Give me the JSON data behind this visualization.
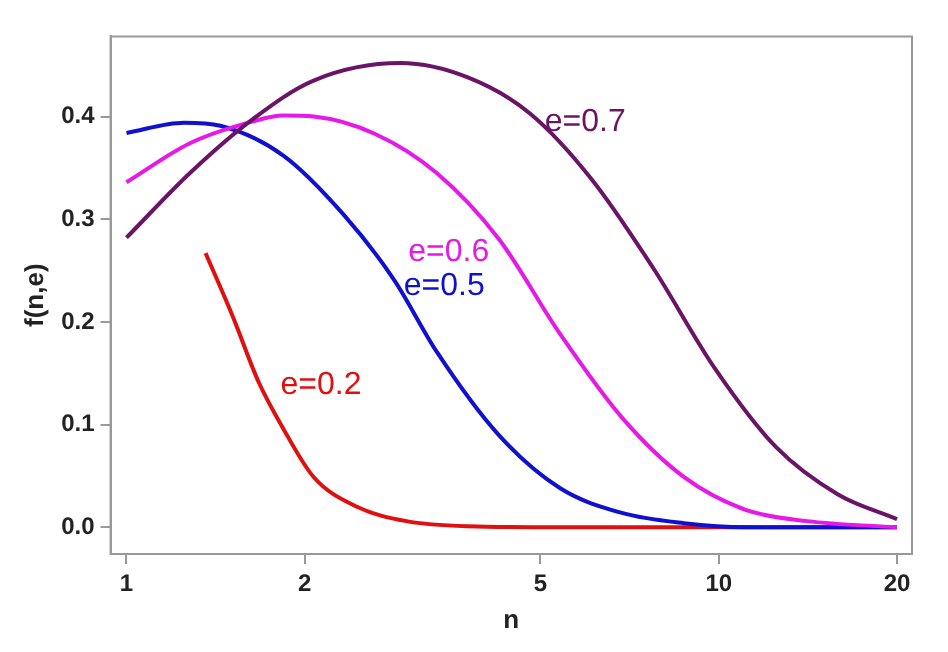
{
  "chart_data": {
    "type": "line",
    "xlabel": "n",
    "ylabel": "f(n,e)",
    "log": "x",
    "xlim": [
      0.94,
      21.2
    ],
    "ylim": [
      -0.026,
      0.478
    ],
    "xticks": [
      1,
      2,
      5,
      10,
      20
    ],
    "yticks": [
      {
        "value": 0,
        "label": "0.0"
      },
      {
        "value": 0.1,
        "label": "0.1"
      },
      {
        "value": 0.2,
        "label": "0.2"
      },
      {
        "value": 0.3,
        "label": "0.3"
      },
      {
        "value": 0.4,
        "label": "0.4"
      }
    ],
    "grid": false,
    "legend": false,
    "marker": "none",
    "line_style": "solid",
    "series": [
      {
        "name": "e=0.7",
        "color": "#6a1466",
        "x": [
          1,
          1.28,
          1.63,
          2.07,
          2.9,
          3.77,
          4.8,
          6.1,
          7.76,
          9.87,
          12.5,
          15.9,
          20
        ],
        "values": [
          0.282,
          0.345,
          0.397,
          0.435,
          0.452,
          0.438,
          0.403,
          0.339,
          0.252,
          0.154,
          0.078,
          0.032,
          0.008
        ]
      },
      {
        "name": "e=0.6",
        "color": "#e619e6",
        "x": [
          1,
          1.28,
          1.63,
          1.84,
          2.07,
          2.63,
          3.34,
          4.25,
          5.4,
          6.86,
          8.73,
          11.1,
          14.1,
          20
        ],
        "values": [
          0.336,
          0.374,
          0.395,
          0.401,
          0.4,
          0.383,
          0.345,
          0.281,
          0.188,
          0.107,
          0.049,
          0.017,
          0.006,
          0
        ]
      },
      {
        "name": "e=0.5",
        "color": "#1010d0",
        "x": [
          1,
          1.25,
          1.44,
          1.84,
          2.33,
          2.83,
          3.34,
          4.25,
          5.4,
          6.86,
          8.73,
          11.1,
          20
        ],
        "values": [
          0.384,
          0.394,
          0.391,
          0.362,
          0.304,
          0.241,
          0.171,
          0.09,
          0.038,
          0.014,
          0.004,
          0,
          0
        ]
      },
      {
        "name": "e=0.2",
        "color": "#e01010",
        "x": [
          1.36,
          1.51,
          1.67,
          1.84,
          2.07,
          2.45,
          2.97,
          3.77,
          5.4,
          20
        ],
        "values": [
          0.267,
          0.206,
          0.142,
          0.096,
          0.049,
          0.02,
          0.006,
          0.001,
          0,
          0
        ]
      }
    ]
  }
}
